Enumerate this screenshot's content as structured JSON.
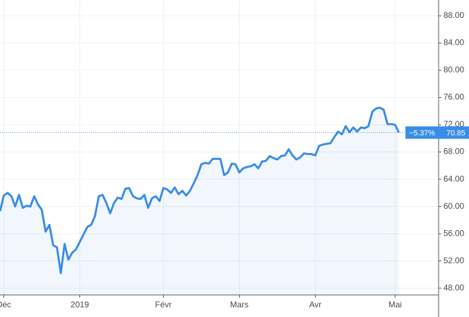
{
  "chart_data": {
    "type": "line",
    "categories": [
      null,
      "Déc",
      null,
      null,
      null,
      null,
      null,
      null,
      null,
      null,
      null,
      null,
      null,
      null,
      null,
      null,
      null,
      null,
      null,
      null,
      null,
      "2019",
      null,
      null,
      null,
      null,
      null,
      null,
      null,
      null,
      null,
      null,
      null,
      null,
      null,
      null,
      null,
      null,
      null,
      null,
      null,
      null,
      null,
      "Févr",
      null,
      null,
      null,
      null,
      null,
      null,
      null,
      null,
      null,
      null,
      null,
      null,
      null,
      null,
      null,
      null,
      null,
      null,
      null,
      "Mars",
      null,
      null,
      null,
      null,
      null,
      null,
      null,
      null,
      null,
      null,
      null,
      null,
      null,
      null,
      null,
      null,
      null,
      null,
      null,
      "Avr",
      null,
      null,
      null,
      null,
      null,
      null,
      null,
      null,
      null,
      null,
      null,
      null,
      null,
      null,
      null,
      null,
      null,
      null,
      null,
      null,
      "Mai",
      null
    ],
    "series": [
      {
        "color": "#3a8de6",
        "values": [
          59.3,
          61.6,
          62.0,
          61.5,
          60.0,
          61.7,
          59.8,
          60.1,
          60.0,
          61.5,
          60.3,
          59.5,
          56.3,
          57.3,
          54.3,
          54.0,
          50.2,
          54.5,
          52.2,
          53.2,
          53.7,
          54.8,
          55.9,
          57.0,
          57.3,
          58.6,
          61.5,
          61.7,
          60.5,
          59.0,
          60.5,
          61.3,
          61.1,
          62.6,
          62.7,
          61.5,
          61.2,
          61.1,
          61.7,
          59.8,
          61.2,
          61.5,
          60.8,
          62.7,
          62.5,
          62.0,
          62.8,
          61.8,
          62.3,
          61.6,
          62.3,
          63.4,
          64.6,
          66.2,
          66.4,
          66.3,
          67.0,
          67.0,
          67.0,
          64.6,
          65.0,
          66.3,
          66.2,
          65.0,
          65.6,
          65.8,
          65.9,
          66.2,
          65.6,
          66.6,
          66.7,
          67.4,
          67.1,
          66.9,
          67.4,
          67.5,
          68.4,
          67.5,
          66.9,
          67.2,
          67.8,
          67.7,
          67.7,
          67.5,
          68.9,
          69.1,
          69.2,
          69.3,
          70.2,
          71.0,
          70.6,
          71.8,
          70.9,
          71.6,
          71.0,
          71.6,
          71.5,
          71.8,
          73.9,
          74.4,
          74.5,
          74.2,
          72.1,
          72.1,
          72.0,
          70.85
        ]
      }
    ],
    "last_value": 70.85,
    "change_label": "−5.37%",
    "ylim": [
      47,
      90.33
    ],
    "yticks": [
      {
        "value": 48,
        "label": "48.00"
      },
      {
        "value": 52,
        "label": "52.00"
      },
      {
        "value": 56,
        "label": "56.00"
      },
      {
        "value": 60,
        "label": "60.00"
      },
      {
        "value": 64,
        "label": "64.00"
      },
      {
        "value": 68,
        "label": "68.00"
      },
      {
        "value": 72,
        "label": "72.00"
      },
      {
        "value": 76,
        "label": "76.00"
      },
      {
        "value": 80,
        "label": "80.00"
      },
      {
        "value": 84,
        "label": "84.00"
      },
      {
        "value": 88,
        "label": "88.00"
      }
    ],
    "grid": true
  }
}
